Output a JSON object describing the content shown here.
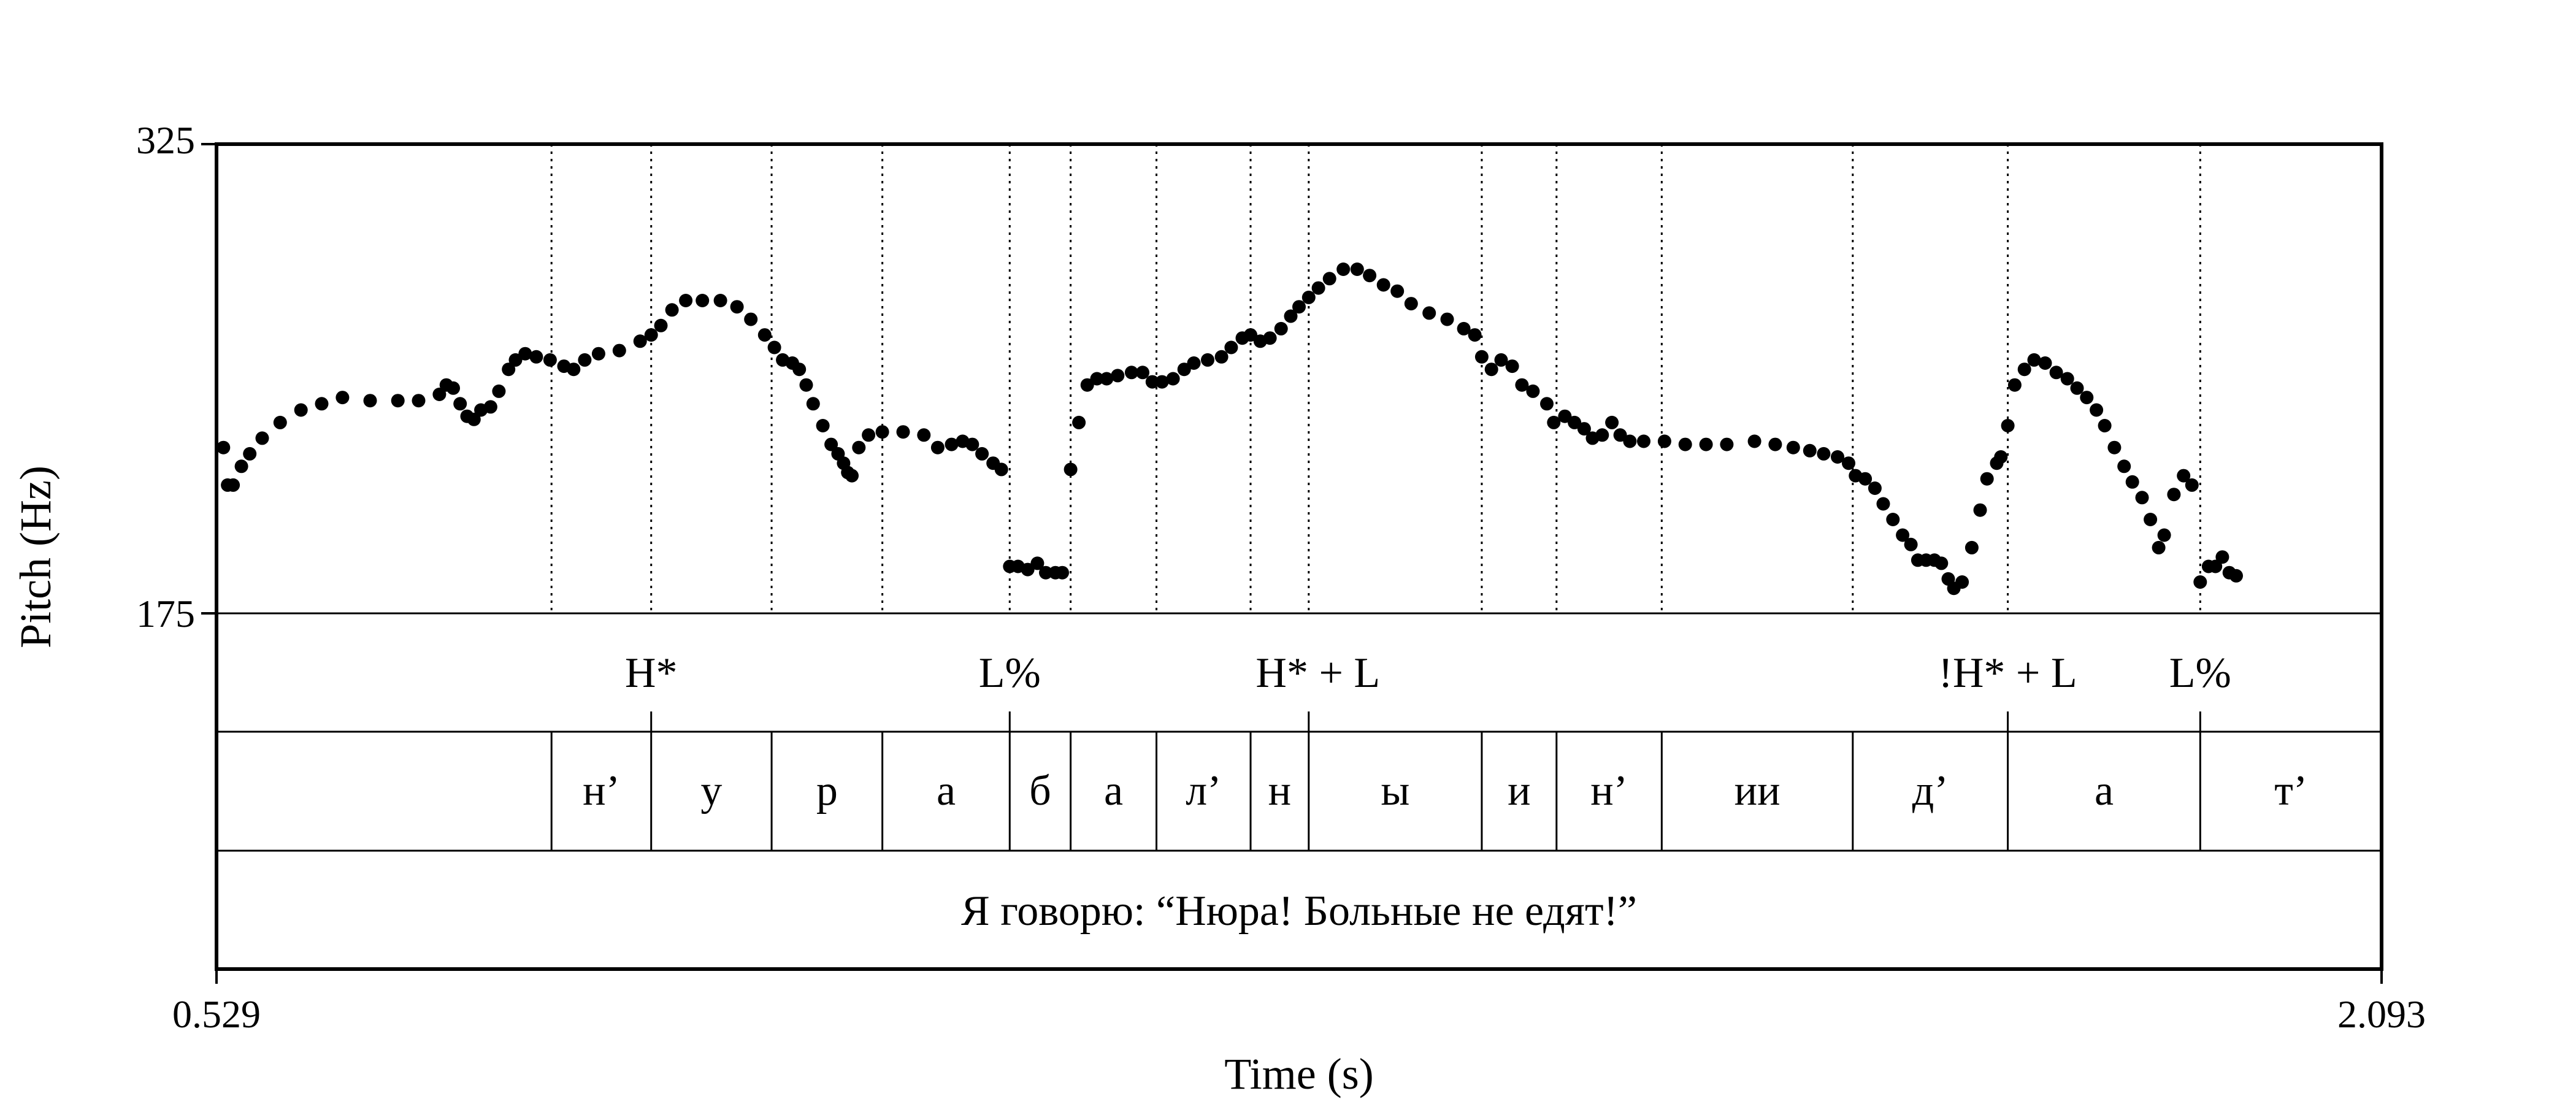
{
  "chart_data": {
    "type": "scatter",
    "title": "",
    "xlabel": "Time (s)",
    "ylabel": "Pitch (Hz)",
    "xlim": [
      0.529,
      2.093
    ],
    "ylim": [
      175,
      325
    ],
    "x_tick_labels": [
      "0.529",
      "2.093"
    ],
    "y_tick_labels": [
      "325",
      "175"
    ],
    "boundaries": [
      0.771,
      0.843,
      0.93,
      1.01,
      1.102,
      1.146,
      1.208,
      1.276,
      1.318,
      1.443,
      1.497,
      1.573,
      1.711,
      1.823,
      1.962
    ],
    "tone_tier": [
      {
        "time": 0.843,
        "label": "H*"
      },
      {
        "time": 1.102,
        "label": "L%"
      },
      {
        "time": 1.318,
        "label": "H* + L"
      },
      {
        "time": 1.823,
        "label": "!H* + L"
      },
      {
        "time": 1.962,
        "label": "L%"
      }
    ],
    "segment_tier": [
      {
        "start": 0.529,
        "end": 0.771,
        "label": ""
      },
      {
        "start": 0.771,
        "end": 0.843,
        "label": "н’"
      },
      {
        "start": 0.843,
        "end": 0.93,
        "label": "у"
      },
      {
        "start": 0.93,
        "end": 1.01,
        "label": "р"
      },
      {
        "start": 1.01,
        "end": 1.102,
        "label": "а"
      },
      {
        "start": 1.102,
        "end": 1.146,
        "label": "б"
      },
      {
        "start": 1.146,
        "end": 1.208,
        "label": "а"
      },
      {
        "start": 1.208,
        "end": 1.276,
        "label": "л’"
      },
      {
        "start": 1.276,
        "end": 1.318,
        "label": "н"
      },
      {
        "start": 1.318,
        "end": 1.443,
        "label": "ы"
      },
      {
        "start": 1.443,
        "end": 1.497,
        "label": "и"
      },
      {
        "start": 1.497,
        "end": 1.573,
        "label": "н’"
      },
      {
        "start": 1.573,
        "end": 1.711,
        "label": "ии"
      },
      {
        "start": 1.711,
        "end": 1.823,
        "label": "д’"
      },
      {
        "start": 1.823,
        "end": 1.962,
        "label": "а"
      },
      {
        "start": 1.962,
        "end": 2.093,
        "label": "т’"
      }
    ],
    "sentence_tier": "Я говорю: “Нюра! Больные не едят!”",
    "pitch_series": [
      {
        "name": "seg1",
        "points": [
          [
            0.534,
            228
          ],
          [
            0.537,
            216
          ],
          [
            0.541,
            216
          ],
          [
            0.547,
            222
          ],
          [
            0.553,
            226
          ],
          [
            0.562,
            231
          ],
          [
            0.575,
            236
          ],
          [
            0.59,
            240
          ],
          [
            0.605,
            242
          ],
          [
            0.62,
            244
          ],
          [
            0.64,
            243
          ],
          [
            0.66,
            243
          ],
          [
            0.675,
            243
          ],
          [
            0.69,
            245
          ],
          [
            0.695,
            248
          ],
          [
            0.7,
            247
          ]
        ]
      },
      {
        "name": "seg2",
        "points": [
          [
            0.705,
            242
          ],
          [
            0.71,
            238
          ],
          [
            0.715,
            237
          ],
          [
            0.72,
            240
          ],
          [
            0.727,
            241
          ],
          [
            0.733,
            246
          ],
          [
            0.74,
            253
          ],
          [
            0.745,
            256
          ],
          [
            0.752,
            258
          ],
          [
            0.76,
            257
          ],
          [
            0.77,
            256
          ],
          [
            0.78,
            254
          ],
          [
            0.787,
            253
          ],
          [
            0.795,
            256
          ],
          [
            0.805,
            258
          ],
          [
            0.82,
            259
          ],
          [
            0.835,
            262
          ],
          [
            0.843,
            264
          ],
          [
            0.85,
            267
          ],
          [
            0.858,
            272
          ],
          [
            0.868,
            275
          ],
          [
            0.88,
            275
          ],
          [
            0.893,
            275
          ],
          [
            0.905,
            273
          ],
          [
            0.915,
            269
          ],
          [
            0.925,
            264
          ],
          [
            0.932,
            260
          ],
          [
            0.938,
            256
          ],
          [
            0.945,
            255
          ],
          [
            0.95,
            253
          ],
          [
            0.955,
            248
          ],
          [
            0.96,
            242
          ],
          [
            0.967,
            235
          ],
          [
            0.973,
            229
          ],
          [
            0.978,
            226
          ],
          [
            0.982,
            223
          ],
          [
            0.985,
            220
          ],
          [
            0.988,
            219
          ],
          [
            0.993,
            228
          ],
          [
            1.0,
            232
          ],
          [
            1.01,
            233
          ],
          [
            1.025,
            233
          ],
          [
            1.04,
            232
          ],
          [
            1.05,
            228
          ],
          [
            1.06,
            229
          ],
          [
            1.068,
            230
          ],
          [
            1.075,
            229
          ],
          [
            1.082,
            226
          ],
          [
            1.09,
            223
          ],
          [
            1.096,
            221
          ]
        ]
      },
      {
        "name": "seg3",
        "points": [
          [
            1.102,
            190
          ],
          [
            1.108,
            190
          ],
          [
            1.115,
            189
          ],
          [
            1.122,
            191
          ],
          [
            1.128,
            188
          ],
          [
            1.135,
            188
          ],
          [
            1.14,
            188
          ]
        ]
      },
      {
        "name": "seg4",
        "points": [
          [
            1.146,
            221
          ],
          [
            1.152,
            236
          ],
          [
            1.158,
            248
          ],
          [
            1.165,
            250
          ],
          [
            1.172,
            250
          ],
          [
            1.18,
            251
          ],
          [
            1.19,
            252
          ],
          [
            1.198,
            252
          ],
          [
            1.205,
            249
          ],
          [
            1.212,
            249
          ],
          [
            1.22,
            250
          ],
          [
            1.228,
            253
          ],
          [
            1.235,
            255
          ],
          [
            1.245,
            256
          ],
          [
            1.255,
            257
          ],
          [
            1.262,
            260
          ],
          [
            1.27,
            263
          ],
          [
            1.276,
            264
          ],
          [
            1.283,
            262
          ],
          [
            1.29,
            263
          ],
          [
            1.298,
            266
          ],
          [
            1.305,
            270
          ],
          [
            1.311,
            273
          ],
          [
            1.318,
            276
          ],
          [
            1.325,
            279
          ],
          [
            1.333,
            282
          ],
          [
            1.343,
            285
          ],
          [
            1.353,
            285
          ],
          [
            1.362,
            283
          ],
          [
            1.372,
            280
          ],
          [
            1.382,
            278
          ],
          [
            1.392,
            274
          ],
          [
            1.405,
            271
          ],
          [
            1.418,
            269
          ],
          [
            1.43,
            266
          ],
          [
            1.438,
            264
          ],
          [
            1.443,
            257
          ],
          [
            1.45,
            253
          ],
          [
            1.457,
            256
          ],
          [
            1.465,
            254
          ],
          [
            1.472,
            248
          ],
          [
            1.48,
            246
          ],
          [
            1.49,
            242
          ],
          [
            1.495,
            236
          ],
          [
            1.503,
            238
          ],
          [
            1.51,
            236
          ],
          [
            1.517,
            234
          ],
          [
            1.523,
            231
          ],
          [
            1.53,
            232
          ],
          [
            1.537,
            236
          ],
          [
            1.543,
            232
          ],
          [
            1.55,
            230
          ],
          [
            1.56,
            230
          ],
          [
            1.575,
            230
          ],
          [
            1.59,
            229
          ],
          [
            1.605,
            229
          ],
          [
            1.62,
            229
          ],
          [
            1.64,
            230
          ],
          [
            1.655,
            229
          ],
          [
            1.668,
            228
          ],
          [
            1.68,
            227
          ],
          [
            1.69,
            226
          ],
          [
            1.7,
            225
          ],
          [
            1.708,
            223
          ],
          [
            1.713,
            219
          ],
          [
            1.72,
            218
          ],
          [
            1.727,
            215
          ],
          [
            1.733,
            210
          ],
          [
            1.74,
            205
          ],
          [
            1.747,
            200
          ],
          [
            1.753,
            197
          ],
          [
            1.758,
            192
          ],
          [
            1.764,
            192
          ],
          [
            1.77,
            192
          ],
          [
            1.775,
            191
          ],
          [
            1.78,
            186
          ],
          [
            1.784,
            183
          ],
          [
            1.79,
            185
          ],
          [
            1.797,
            196
          ],
          [
            1.803,
            208
          ],
          [
            1.808,
            218
          ],
          [
            1.815,
            223
          ],
          [
            1.818,
            225
          ],
          [
            1.823,
            235
          ],
          [
            1.828,
            248
          ],
          [
            1.835,
            253
          ],
          [
            1.842,
            256
          ],
          [
            1.85,
            255
          ],
          [
            1.858,
            252
          ],
          [
            1.866,
            250
          ],
          [
            1.873,
            247
          ],
          [
            1.88,
            244
          ],
          [
            1.887,
            240
          ],
          [
            1.893,
            235
          ],
          [
            1.9,
            228
          ],
          [
            1.907,
            222
          ],
          [
            1.913,
            217
          ],
          [
            1.92,
            212
          ],
          [
            1.926,
            205
          ],
          [
            1.932,
            196
          ],
          [
            1.936,
            200
          ],
          [
            1.943,
            213
          ],
          [
            1.95,
            219
          ],
          [
            1.956,
            216
          ],
          [
            1.962,
            185
          ],
          [
            1.968,
            190
          ],
          [
            1.973,
            190
          ],
          [
            1.978,
            193
          ],
          [
            1.983,
            188
          ],
          [
            1.988,
            187
          ]
        ]
      }
    ]
  }
}
